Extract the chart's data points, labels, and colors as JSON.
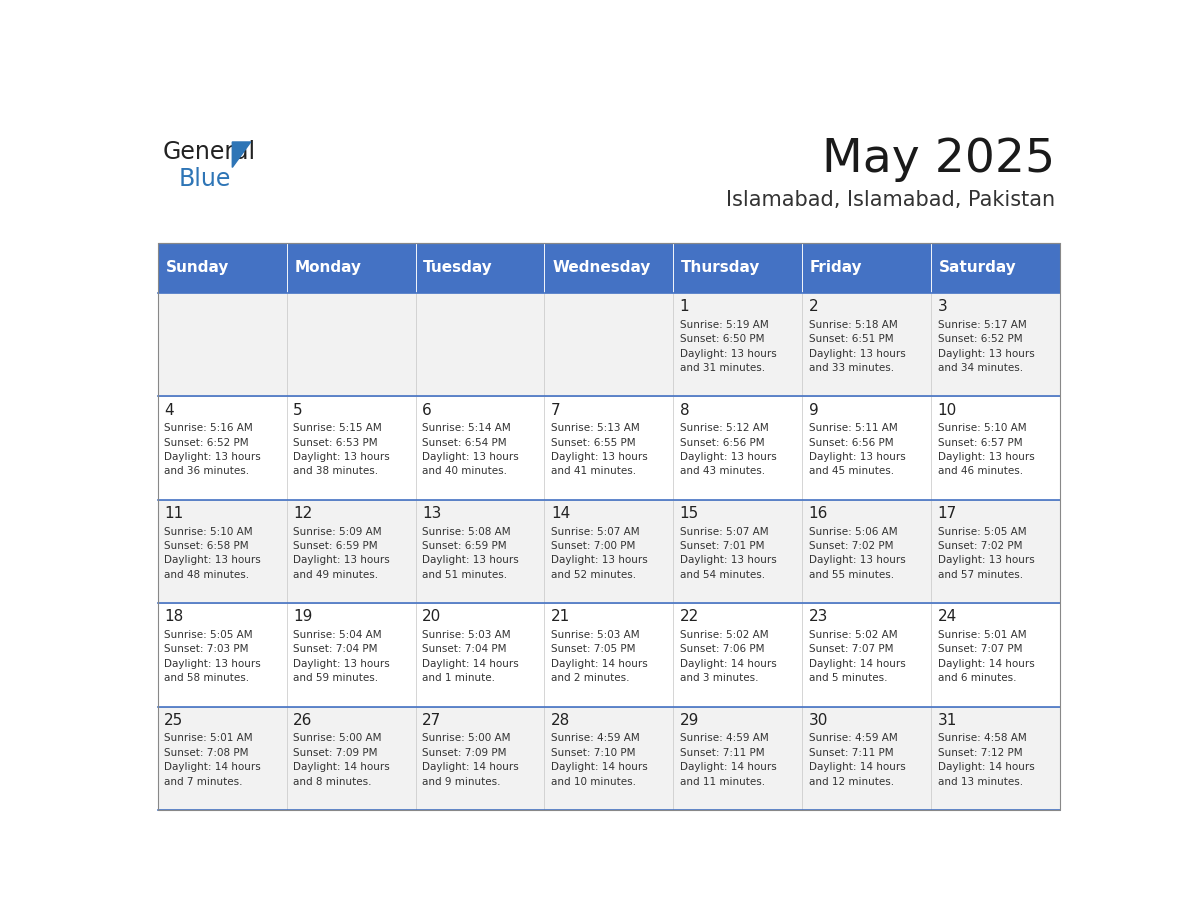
{
  "title": "May 2025",
  "subtitle": "Islamabad, Islamabad, Pakistan",
  "header_bg": "#4472C4",
  "header_text_color": "#FFFFFF",
  "day_names": [
    "Sunday",
    "Monday",
    "Tuesday",
    "Wednesday",
    "Thursday",
    "Friday",
    "Saturday"
  ],
  "odd_row_bg": "#F2F2F2",
  "even_row_bg": "#FFFFFF",
  "cell_text_color": "#333333",
  "grid_color": "#CCCCCC",
  "calendar_data": [
    [
      {
        "day": "",
        "info": ""
      },
      {
        "day": "",
        "info": ""
      },
      {
        "day": "",
        "info": ""
      },
      {
        "day": "",
        "info": ""
      },
      {
        "day": "1",
        "info": "Sunrise: 5:19 AM\nSunset: 6:50 PM\nDaylight: 13 hours\nand 31 minutes."
      },
      {
        "day": "2",
        "info": "Sunrise: 5:18 AM\nSunset: 6:51 PM\nDaylight: 13 hours\nand 33 minutes."
      },
      {
        "day": "3",
        "info": "Sunrise: 5:17 AM\nSunset: 6:52 PM\nDaylight: 13 hours\nand 34 minutes."
      }
    ],
    [
      {
        "day": "4",
        "info": "Sunrise: 5:16 AM\nSunset: 6:52 PM\nDaylight: 13 hours\nand 36 minutes."
      },
      {
        "day": "5",
        "info": "Sunrise: 5:15 AM\nSunset: 6:53 PM\nDaylight: 13 hours\nand 38 minutes."
      },
      {
        "day": "6",
        "info": "Sunrise: 5:14 AM\nSunset: 6:54 PM\nDaylight: 13 hours\nand 40 minutes."
      },
      {
        "day": "7",
        "info": "Sunrise: 5:13 AM\nSunset: 6:55 PM\nDaylight: 13 hours\nand 41 minutes."
      },
      {
        "day": "8",
        "info": "Sunrise: 5:12 AM\nSunset: 6:56 PM\nDaylight: 13 hours\nand 43 minutes."
      },
      {
        "day": "9",
        "info": "Sunrise: 5:11 AM\nSunset: 6:56 PM\nDaylight: 13 hours\nand 45 minutes."
      },
      {
        "day": "10",
        "info": "Sunrise: 5:10 AM\nSunset: 6:57 PM\nDaylight: 13 hours\nand 46 minutes."
      }
    ],
    [
      {
        "day": "11",
        "info": "Sunrise: 5:10 AM\nSunset: 6:58 PM\nDaylight: 13 hours\nand 48 minutes."
      },
      {
        "day": "12",
        "info": "Sunrise: 5:09 AM\nSunset: 6:59 PM\nDaylight: 13 hours\nand 49 minutes."
      },
      {
        "day": "13",
        "info": "Sunrise: 5:08 AM\nSunset: 6:59 PM\nDaylight: 13 hours\nand 51 minutes."
      },
      {
        "day": "14",
        "info": "Sunrise: 5:07 AM\nSunset: 7:00 PM\nDaylight: 13 hours\nand 52 minutes."
      },
      {
        "day": "15",
        "info": "Sunrise: 5:07 AM\nSunset: 7:01 PM\nDaylight: 13 hours\nand 54 minutes."
      },
      {
        "day": "16",
        "info": "Sunrise: 5:06 AM\nSunset: 7:02 PM\nDaylight: 13 hours\nand 55 minutes."
      },
      {
        "day": "17",
        "info": "Sunrise: 5:05 AM\nSunset: 7:02 PM\nDaylight: 13 hours\nand 57 minutes."
      }
    ],
    [
      {
        "day": "18",
        "info": "Sunrise: 5:05 AM\nSunset: 7:03 PM\nDaylight: 13 hours\nand 58 minutes."
      },
      {
        "day": "19",
        "info": "Sunrise: 5:04 AM\nSunset: 7:04 PM\nDaylight: 13 hours\nand 59 minutes."
      },
      {
        "day": "20",
        "info": "Sunrise: 5:03 AM\nSunset: 7:04 PM\nDaylight: 14 hours\nand 1 minute."
      },
      {
        "day": "21",
        "info": "Sunrise: 5:03 AM\nSunset: 7:05 PM\nDaylight: 14 hours\nand 2 minutes."
      },
      {
        "day": "22",
        "info": "Sunrise: 5:02 AM\nSunset: 7:06 PM\nDaylight: 14 hours\nand 3 minutes."
      },
      {
        "day": "23",
        "info": "Sunrise: 5:02 AM\nSunset: 7:07 PM\nDaylight: 14 hours\nand 5 minutes."
      },
      {
        "day": "24",
        "info": "Sunrise: 5:01 AM\nSunset: 7:07 PM\nDaylight: 14 hours\nand 6 minutes."
      }
    ],
    [
      {
        "day": "25",
        "info": "Sunrise: 5:01 AM\nSunset: 7:08 PM\nDaylight: 14 hours\nand 7 minutes."
      },
      {
        "day": "26",
        "info": "Sunrise: 5:00 AM\nSunset: 7:09 PM\nDaylight: 14 hours\nand 8 minutes."
      },
      {
        "day": "27",
        "info": "Sunrise: 5:00 AM\nSunset: 7:09 PM\nDaylight: 14 hours\nand 9 minutes."
      },
      {
        "day": "28",
        "info": "Sunrise: 4:59 AM\nSunset: 7:10 PM\nDaylight: 14 hours\nand 10 minutes."
      },
      {
        "day": "29",
        "info": "Sunrise: 4:59 AM\nSunset: 7:11 PM\nDaylight: 14 hours\nand 11 minutes."
      },
      {
        "day": "30",
        "info": "Sunrise: 4:59 AM\nSunset: 7:11 PM\nDaylight: 14 hours\nand 12 minutes."
      },
      {
        "day": "31",
        "info": "Sunrise: 4:58 AM\nSunset: 7:12 PM\nDaylight: 14 hours\nand 13 minutes."
      }
    ]
  ],
  "logo_color_general": "#222222",
  "logo_color_blue": "#2E75B6",
  "logo_triangle_color": "#2E75B6"
}
